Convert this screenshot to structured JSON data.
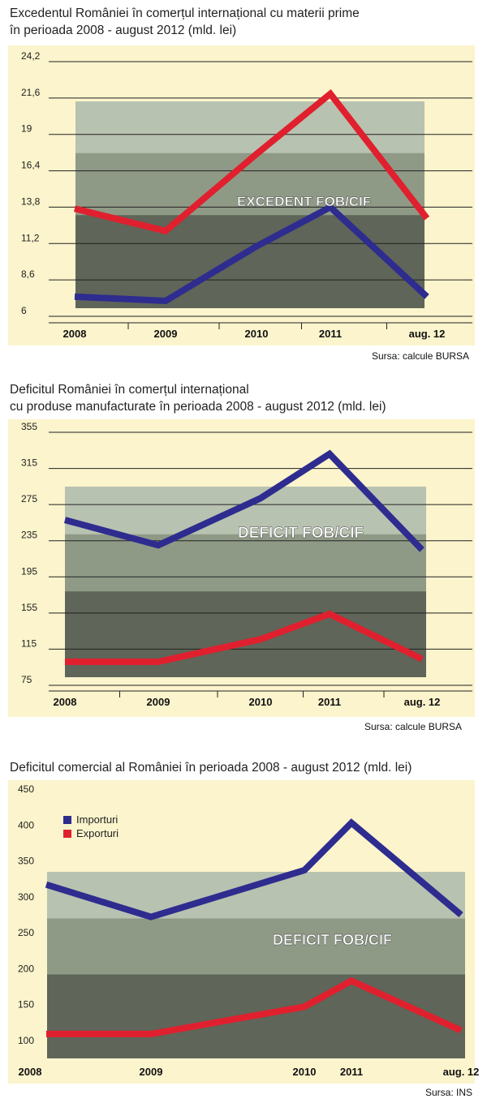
{
  "chart_data": [
    {
      "type": "line",
      "title": "Excedentul României în comerțul internațional cu materii prime\nîn perioada 2008 - august 2012 (mld. lei)",
      "categories": [
        "2008",
        "2009",
        "2010",
        "2011",
        "aug. 12"
      ],
      "y_ticks": [
        "24,2",
        "21,6",
        "19",
        "16,4",
        "13,8",
        "11,2",
        "8,6",
        "6"
      ],
      "ylim": [
        6,
        24.2
      ],
      "grid": true,
      "series": [
        {
          "color": "#e0202e",
          "values": [
            13.7,
            12.1,
            17.6,
            21.9,
            13.0
          ]
        },
        {
          "color": "#2e2c8f",
          "values": [
            7.4,
            7.1,
            11.0,
            13.8,
            7.4
          ]
        }
      ],
      "annotation": "EXCEDENT FOB/CIF",
      "source": "Sursa: calcule BURSA"
    },
    {
      "type": "line",
      "title": "Deficitul României în comerțul internațional\ncu  produse manufacturate în perioada 2008 - august 2012 (mld. lei)",
      "categories": [
        "2008",
        "2009",
        "2010",
        "2011",
        "aug. 12"
      ],
      "y_ticks": [
        "355",
        "315",
        "275",
        "235",
        "195",
        "155",
        "115",
        "75"
      ],
      "ylim": [
        75,
        355
      ],
      "grid": true,
      "series": [
        {
          "color": "#2e2c8f",
          "values": [
            258,
            230,
            282,
            331,
            225
          ]
        },
        {
          "color": "#e0202e",
          "values": [
            101,
            101,
            126,
            154,
            104
          ]
        }
      ],
      "annotation": "DEFICIT FOB/CIF",
      "source": "Sursa: calcule BURSA"
    },
    {
      "type": "line",
      "title": "Deficitul comercial al României în perioada 2008 - august 2012 (mld. lei)",
      "categories": [
        "2008",
        "2009",
        "2010",
        "2011",
        "aug. 12"
      ],
      "y_ticks": [
        "450",
        "400",
        "350",
        "300",
        "250",
        "200",
        "150",
        "100"
      ],
      "ylim": [
        100,
        450
      ],
      "grid": false,
      "legend": "top-left",
      "series": [
        {
          "name": "Importuri",
          "color": "#2e2c8f",
          "values": [
            325,
            280,
            345,
            411,
            283
          ]
        },
        {
          "name": "Exporturi",
          "color": "#e0202e",
          "values": [
            117,
            117,
            155,
            191,
            122
          ]
        }
      ],
      "annotation": "DEFICIT FOB/CIF",
      "source": "Sursa: INS"
    }
  ]
}
